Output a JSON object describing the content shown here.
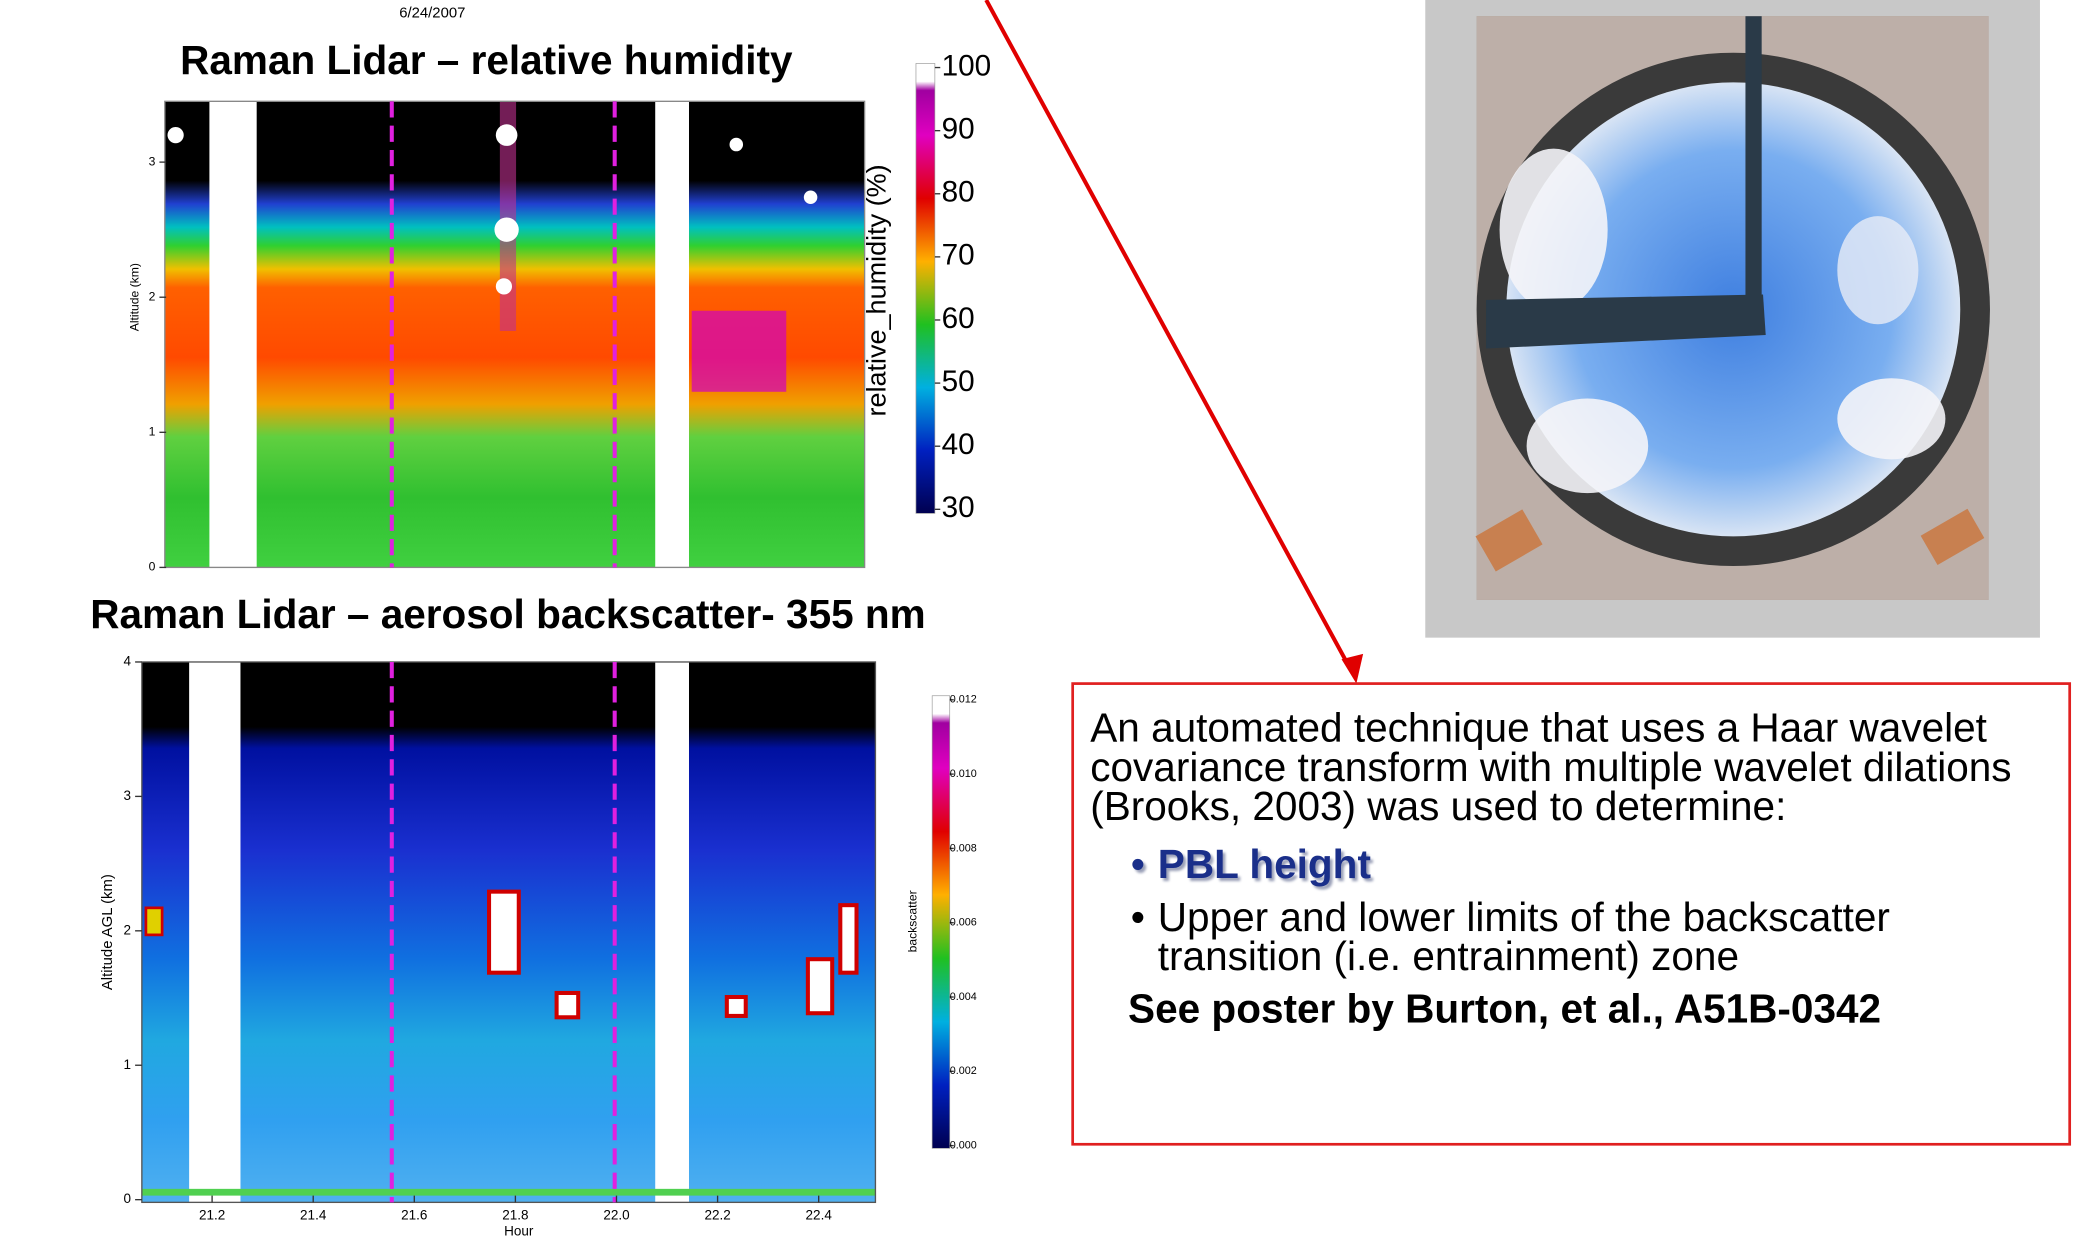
{
  "date": "6/24/2007",
  "rh_panel": {
    "title": "Raman Lidar – relative humidity",
    "y_label": "Altitude (km)",
    "y_ticks": [
      0,
      1,
      2,
      3
    ],
    "colorbar_label": "relative_humidity (%)",
    "colorbar_ticks": [
      100,
      90,
      80,
      70,
      60,
      50,
      40,
      30
    ]
  },
  "backscatter_panel": {
    "title": "Raman Lidar – aerosol backscatter- 355 nm",
    "y_label": "Altitude AGL (km)",
    "y_ticks": [
      0,
      1,
      2,
      3,
      4
    ],
    "x_label": "Hour",
    "x_ticks": [
      21.2,
      21.4,
      21.6,
      21.8,
      {
        "value": 22.0,
        "label": "22.0"
      },
      22.2,
      22.4
    ],
    "colorbar_label": "backscatter",
    "colorbar_ticks": [
      0.012,
      {
        "value": 0.01,
        "label": "0.010"
      },
      0.008,
      0.006,
      0.004,
      0.002,
      {
        "value": 0.0,
        "label": "0.000"
      }
    ]
  },
  "text_box": {
    "intro": "An automated technique that uses a Haar wavelet covariance transform with multiple wavelet dilations (Brooks, 2003) was used to determine:",
    "bullets": [
      "PBL height",
      "Upper and lower limits of the backscatter transition (i.e. entrainment) zone"
    ],
    "footer": "See poster by Burton, et al., A51B-0342"
  }
}
